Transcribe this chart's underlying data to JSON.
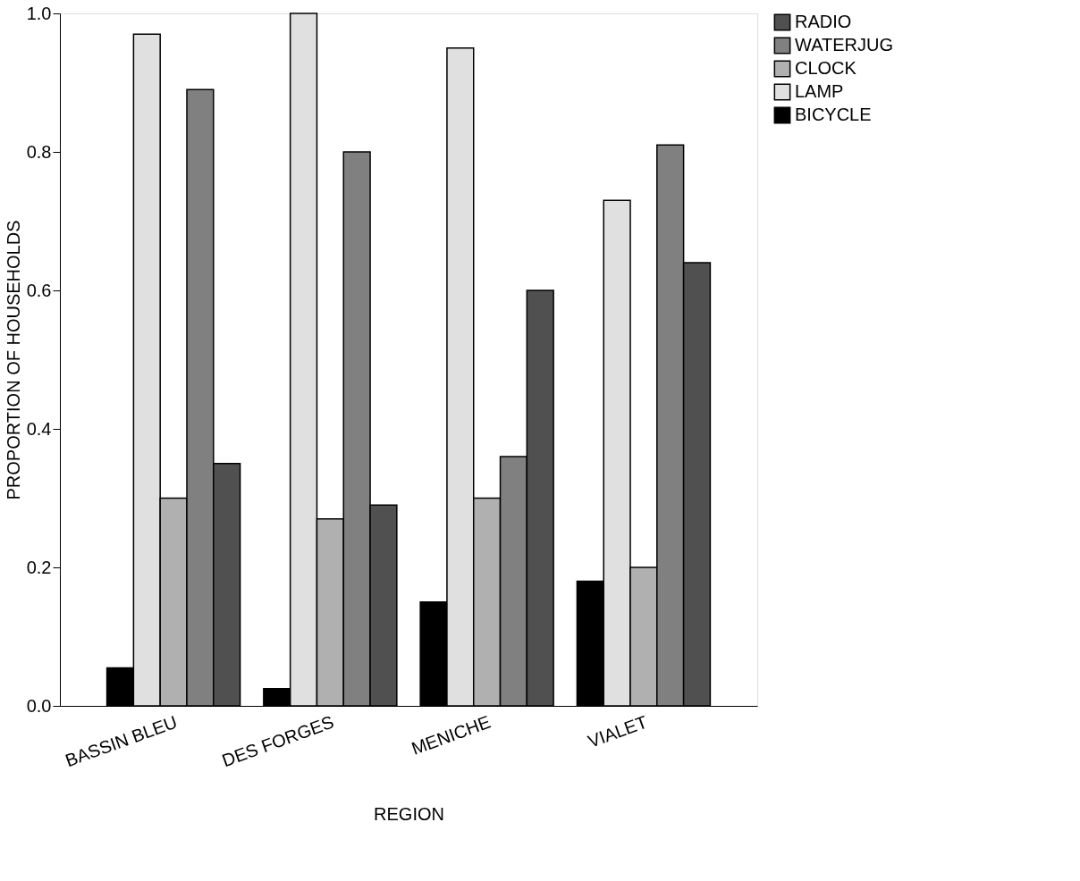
{
  "chart_data": {
    "type": "bar",
    "xlabel": "REGION",
    "ylabel": "PROPORTION OF HOUSEHOLDS",
    "categories": [
      "BASSIN BLEU",
      "DES FORGES",
      "MENICHE",
      "VIALET"
    ],
    "series": [
      {
        "name": "BICYCLE",
        "color": "#000000",
        "values": [
          0.055,
          0.025,
          0.15,
          0.18
        ]
      },
      {
        "name": "LAMP",
        "color": "#e0e0e0",
        "values": [
          0.97,
          1.0,
          0.95,
          0.73
        ]
      },
      {
        "name": "CLOCK",
        "color": "#b0b0b0",
        "values": [
          0.3,
          0.27,
          0.3,
          0.2
        ]
      },
      {
        "name": "WATERJUG",
        "color": "#808080",
        "values": [
          0.89,
          0.8,
          0.36,
          0.81
        ]
      },
      {
        "name": "RADIO",
        "color": "#505050",
        "values": [
          0.35,
          0.29,
          0.6,
          0.64
        ]
      }
    ],
    "ylim": [
      0,
      1.0
    ],
    "yticks": [
      {
        "value": 0,
        "label": "0.0"
      },
      0.2,
      0.4,
      0.6,
      0.8,
      {
        "value": 1,
        "label": "1.0"
      }
    ],
    "grid": false,
    "legend": "right"
  }
}
